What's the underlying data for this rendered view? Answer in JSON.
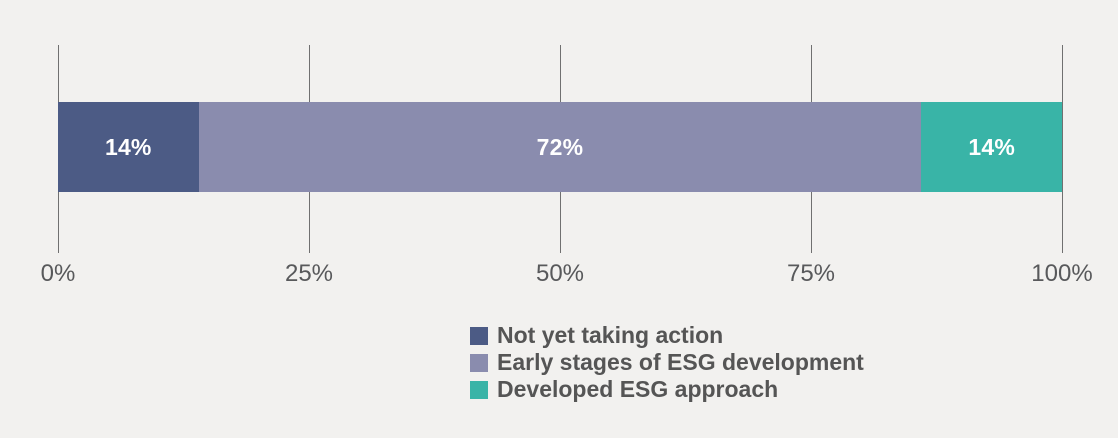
{
  "chart_data": {
    "type": "bar",
    "orientation": "horizontal",
    "stacked": true,
    "title": "",
    "xlabel": "",
    "ylabel": "",
    "xlim": [
      0,
      100
    ],
    "grid": true,
    "legend_position": "bottom",
    "x_ticks": [
      {
        "value": 0,
        "label": "0%"
      },
      {
        "value": 25,
        "label": "25%"
      },
      {
        "value": 50,
        "label": "50%"
      },
      {
        "value": 75,
        "label": "75%"
      },
      {
        "value": 100,
        "label": "100%"
      }
    ],
    "series": [
      {
        "name": "Not yet taking action",
        "value": 14,
        "label": "14%",
        "color": "#4c5b85"
      },
      {
        "name": "Early stages of ESG development",
        "value": 72,
        "label": "72%",
        "color": "#8a8cae"
      },
      {
        "name": "Developed ESG approach",
        "value": 14,
        "label": "14%",
        "color": "#39b4a7"
      }
    ]
  },
  "colors": {
    "background": "#f2f1ef",
    "gridline": "#707070",
    "tick_label": "#58595b",
    "legend_label": "#555555",
    "bar_label": "#ffffff"
  }
}
